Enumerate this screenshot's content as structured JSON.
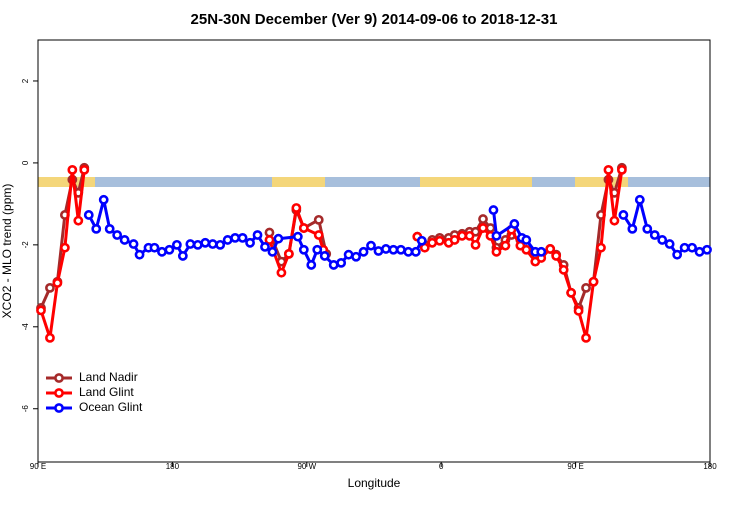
{
  "chart_data": {
    "type": "line",
    "title": "25N-30N December (Ver 9)   2014-09-06 to 2018-12-31",
    "xlabel": "Longitude",
    "ylabel": "XCO2 - MLO trend (ppm)",
    "xlim": [
      90,
      540
    ],
    "ylim": [
      -7.3,
      3
    ],
    "xticks": [
      {
        "value": 90,
        "label": "90 E"
      },
      180,
      {
        "value": 270,
        "label": "90 W"
      },
      {
        "value": 360,
        "label": "0"
      },
      {
        "value": 450,
        "label": "90 E"
      },
      {
        "value": 540,
        "label": "180"
      }
    ],
    "yticks": [
      -6,
      -4,
      -2,
      0,
      2
    ],
    "legend": "bottom-left",
    "series": [
      {
        "name": "Land Nadir",
        "color": "#a52a2a",
        "x": [
          92,
          98,
          103,
          108,
          113,
          117,
          121,
          180,
          245,
          253,
          258,
          263,
          268,
          278,
          283,
          310,
          344,
          349,
          354,
          359,
          365,
          369,
          374,
          379,
          383,
          388,
          393,
          397,
          403,
          407,
          413,
          417,
          423,
          427,
          433,
          437,
          442,
          447,
          452,
          457,
          462,
          467,
          472,
          476,
          481
        ],
        "values": [
          -3.54,
          -3.05,
          -2.9,
          -1.27,
          -0.41,
          -0.73,
          -0.12,
          null,
          -1.7,
          -2.41,
          -2.22,
          -1.15,
          -1.59,
          -1.39,
          -2.22,
          null,
          -1.8,
          -2.0,
          -1.88,
          -1.83,
          -1.83,
          -1.76,
          -1.73,
          -1.68,
          -1.68,
          -1.37,
          -1.59,
          -2.07,
          -1.88,
          -1.76,
          -1.88,
          -2.02,
          -2.24,
          -2.24,
          -2.1,
          -2.24,
          -2.49,
          -3.17,
          -3.54,
          -3.05,
          -2.9,
          -1.27,
          -0.41,
          -0.73,
          -0.12
        ]
      },
      {
        "name": "Land Glint",
        "color": "#ff0000",
        "x": [
          92,
          98,
          103,
          108,
          113,
          117,
          121,
          180,
          245,
          253,
          258,
          263,
          268,
          278,
          281,
          310,
          344,
          349,
          354,
          359,
          365,
          369,
          374,
          379,
          383,
          388,
          393,
          397,
          403,
          407,
          413,
          417,
          423,
          427,
          433,
          437,
          442,
          447,
          452,
          457,
          462,
          467,
          472,
          476,
          481
        ],
        "values": [
          -3.6,
          -4.27,
          -2.93,
          -2.07,
          -0.17,
          -1.41,
          -0.17,
          null,
          -1.88,
          -2.68,
          -2.22,
          -1.1,
          -1.59,
          -1.76,
          -2.12,
          null,
          -1.8,
          -2.07,
          -1.95,
          -1.9,
          -1.95,
          -1.88,
          -1.78,
          -1.78,
          -2.0,
          -1.59,
          -1.78,
          -2.17,
          -2.02,
          -1.63,
          -2.02,
          -2.12,
          -2.41,
          -2.32,
          -2.1,
          -2.27,
          -2.61,
          -3.17,
          -3.61,
          -4.27,
          -2.9,
          -2.07,
          -0.17,
          -1.41,
          -0.17
        ]
      },
      {
        "name": "Ocean Glint",
        "color": "#0000ff",
        "x": [
          124,
          129,
          134,
          138,
          143,
          148,
          154,
          158,
          164,
          168,
          173,
          178,
          183,
          187,
          192,
          197,
          202,
          207,
          212,
          217,
          222,
          227,
          232,
          237,
          242,
          247,
          251,
          264,
          268,
          273,
          277,
          282,
          288,
          293,
          298,
          303,
          308,
          313,
          318,
          323,
          328,
          333,
          338,
          343,
          347,
          370,
          395,
          397,
          409,
          414,
          417,
          423,
          427,
          455,
          482,
          488,
          493,
          498,
          503,
          508,
          513,
          518,
          523,
          528,
          533,
          538
        ],
        "values": [
          -1.27,
          -1.61,
          -0.9,
          -1.61,
          -1.76,
          -1.88,
          -1.98,
          -2.24,
          -2.07,
          -2.07,
          -2.17,
          -2.12,
          -2.0,
          -2.27,
          -1.98,
          -2.0,
          -1.95,
          -1.98,
          -2.0,
          -1.88,
          -1.83,
          -1.83,
          -1.95,
          -1.76,
          -2.05,
          -2.17,
          -1.85,
          -1.8,
          -2.12,
          -2.49,
          -2.12,
          -2.27,
          -2.49,
          -2.44,
          -2.24,
          -2.29,
          -2.17,
          -2.02,
          -2.15,
          -2.1,
          -2.12,
          -2.12,
          -2.17,
          -2.17,
          -1.9,
          null,
          -1.15,
          -1.78,
          -1.49,
          -1.83,
          -1.88,
          -2.17,
          -2.17,
          null,
          -1.27,
          -1.61,
          -0.9,
          -1.61,
          -1.76,
          -1.88,
          -1.98,
          -2.24,
          -2.07,
          -2.07,
          -2.17,
          -2.12
        ]
      }
    ]
  }
}
